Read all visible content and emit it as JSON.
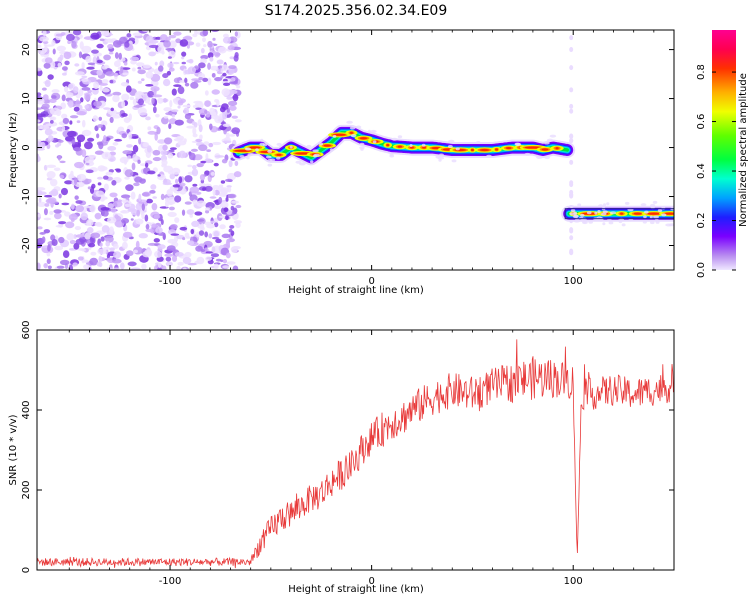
{
  "title": "S174.2025.356.02.34.E09",
  "chart_data": [
    {
      "type": "heatmap",
      "xlabel": "Height of straight line (km)",
      "ylabel": "Frequency (Hz)",
      "xlim": [
        -166,
        150
      ],
      "ylim": [
        -25,
        24
      ],
      "x_ticks": [
        -100,
        0,
        100
      ],
      "x_tick_labels": [
        "-100",
        "0",
        "100"
      ],
      "y_ticks": [
        -20,
        -10,
        0,
        10,
        20
      ],
      "y_tick_labels": [
        "-20",
        "-10",
        "0",
        "10",
        "20"
      ],
      "colorbar": {
        "label": "Normalized spectral amplitude",
        "range": [
          0,
          0.97
        ],
        "ticks": [
          0.0,
          0.2,
          0.4,
          0.6,
          0.8
        ],
        "tick_labels": [
          "0.0",
          "0.2",
          "0.4",
          "0.6",
          "0.8"
        ]
      },
      "noise_region": {
        "x_range": [
          -166,
          -66
        ],
        "y_range": [
          -25,
          24
        ],
        "amplitude_range": [
          0.0,
          0.12
        ]
      },
      "ridge_segments": [
        {
          "x": [
            -66,
            -60,
            -55,
            -50,
            -45,
            -40,
            -35,
            -30,
            -25,
            -20,
            -15,
            -10,
            -5,
            0,
            5,
            10,
            20,
            30,
            40,
            50,
            60,
            70,
            80,
            85,
            90,
            97
          ],
          "y": [
            -1,
            0,
            0,
            -1.5,
            -1.5,
            0,
            -1,
            -2,
            -0.5,
            1,
            3,
            3,
            2,
            1.5,
            0.8,
            0.3,
            0,
            0,
            -0.5,
            -0.5,
            -0.5,
            0,
            0,
            -0.5,
            0,
            -0.5
          ],
          "peak_amplitude": 0.9
        },
        {
          "x": [
            98,
            105,
            115,
            125,
            135,
            145,
            150
          ],
          "y": [
            -13.5,
            -13.5,
            -13.5,
            -13.5,
            -13.5,
            -13.5,
            -13.5
          ],
          "peak_amplitude": 0.9
        }
      ],
      "grid": false
    },
    {
      "type": "line",
      "xlabel": "Height of straight line (km)",
      "ylabel": "SNR (10 * v/v)",
      "xlim": [
        -166,
        150
      ],
      "ylim": [
        0,
        600
      ],
      "x_ticks": [
        -100,
        0,
        100
      ],
      "x_tick_labels": [
        "-100",
        "0",
        "100"
      ],
      "y_ticks": [
        0,
        200,
        400,
        600
      ],
      "y_tick_labels": [
        "0",
        "200",
        "400",
        "600"
      ],
      "series": [
        {
          "color": "#e83a3a",
          "x": [
            -166,
            -120,
            -100,
            -80,
            -60,
            -56,
            -50,
            -45,
            -40,
            -35,
            -30,
            -25,
            -20,
            -15,
            -10,
            -5,
            0,
            5,
            10,
            15,
            20,
            30,
            40,
            50,
            60,
            70,
            80,
            90,
            100,
            102,
            104,
            110,
            120,
            130,
            140,
            150
          ],
          "y": [
            20,
            20,
            20,
            20,
            20,
            60,
            100,
            130,
            140,
            160,
            180,
            190,
            220,
            240,
            260,
            300,
            330,
            350,
            370,
            380,
            400,
            430,
            450,
            440,
            460,
            470,
            480,
            480,
            470,
            20,
            440,
            440,
            450,
            440,
            450,
            460
          ],
          "noise": [
            10,
            10,
            10,
            10,
            10,
            25,
            35,
            35,
            35,
            35,
            35,
            40,
            40,
            40,
            40,
            40,
            40,
            45,
            45,
            45,
            45,
            45,
            45,
            45,
            45,
            50,
            55,
            50,
            45,
            0,
            40,
            40,
            40,
            40,
            40,
            40
          ]
        }
      ],
      "grid": false
    }
  ]
}
